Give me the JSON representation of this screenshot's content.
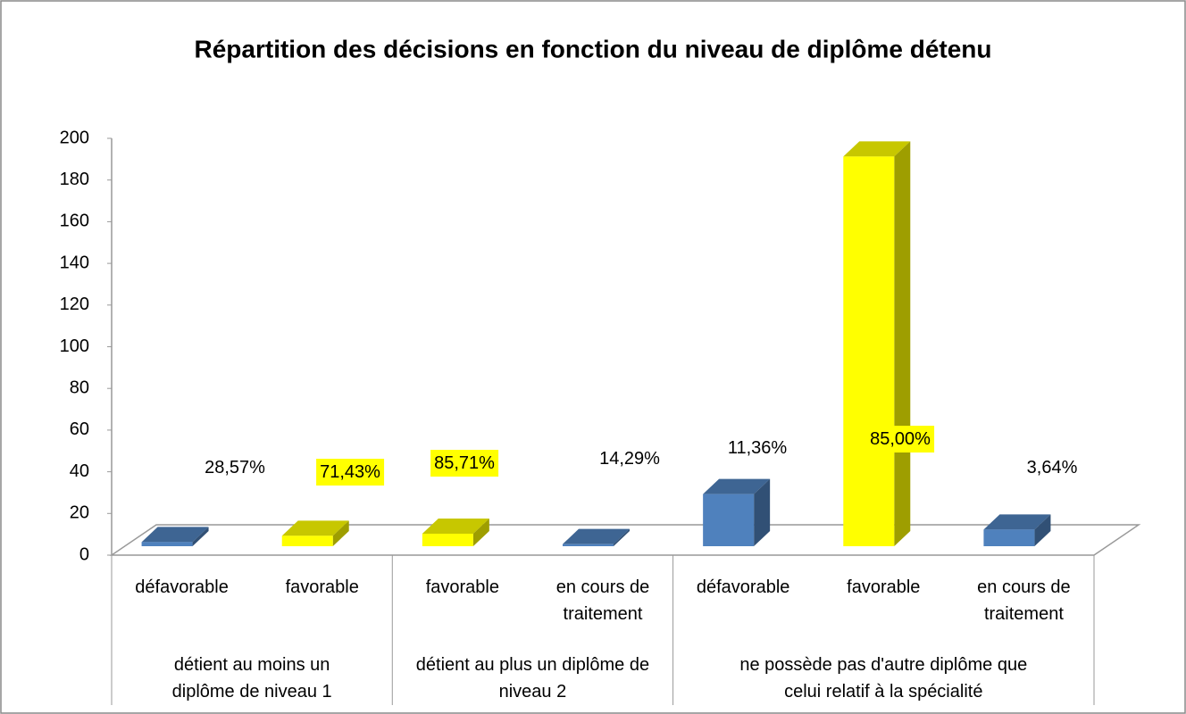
{
  "chart_data": {
    "type": "bar3d",
    "title": "Répartition des décisions en fonction du niveau de diplôme détenu",
    "categories": [
      "défavorable",
      "favorable",
      "favorable",
      "en cours de traitement",
      "défavorable",
      "favorable",
      "en cours de traitement"
    ],
    "groups": [
      {
        "label": "détient au moins un diplôme de niveau 1",
        "span": 2
      },
      {
        "label": "détient au plus un diplôme de  niveau 2",
        "span": 2
      },
      {
        "label": "ne possède pas d'autre diplôme que celui relatif à la spécialité",
        "span": 3
      }
    ],
    "values": [
      2,
      5,
      6,
      1,
      25,
      187,
      8
    ],
    "shares": [
      "28,57%",
      "71,43%",
      "85,71%",
      "14,29%",
      "11,36%",
      "85,00%",
      "3,64%"
    ],
    "colors": [
      "#4f81bd",
      "#ffff00",
      "#ffff00",
      "#4f81bd",
      "#4f81bd",
      "#ffff00",
      "#4f81bd"
    ],
    "ylim": [
      0,
      200
    ],
    "yticks": [
      0,
      20,
      40,
      60,
      80,
      100,
      120,
      140,
      160,
      180,
      200
    ]
  }
}
